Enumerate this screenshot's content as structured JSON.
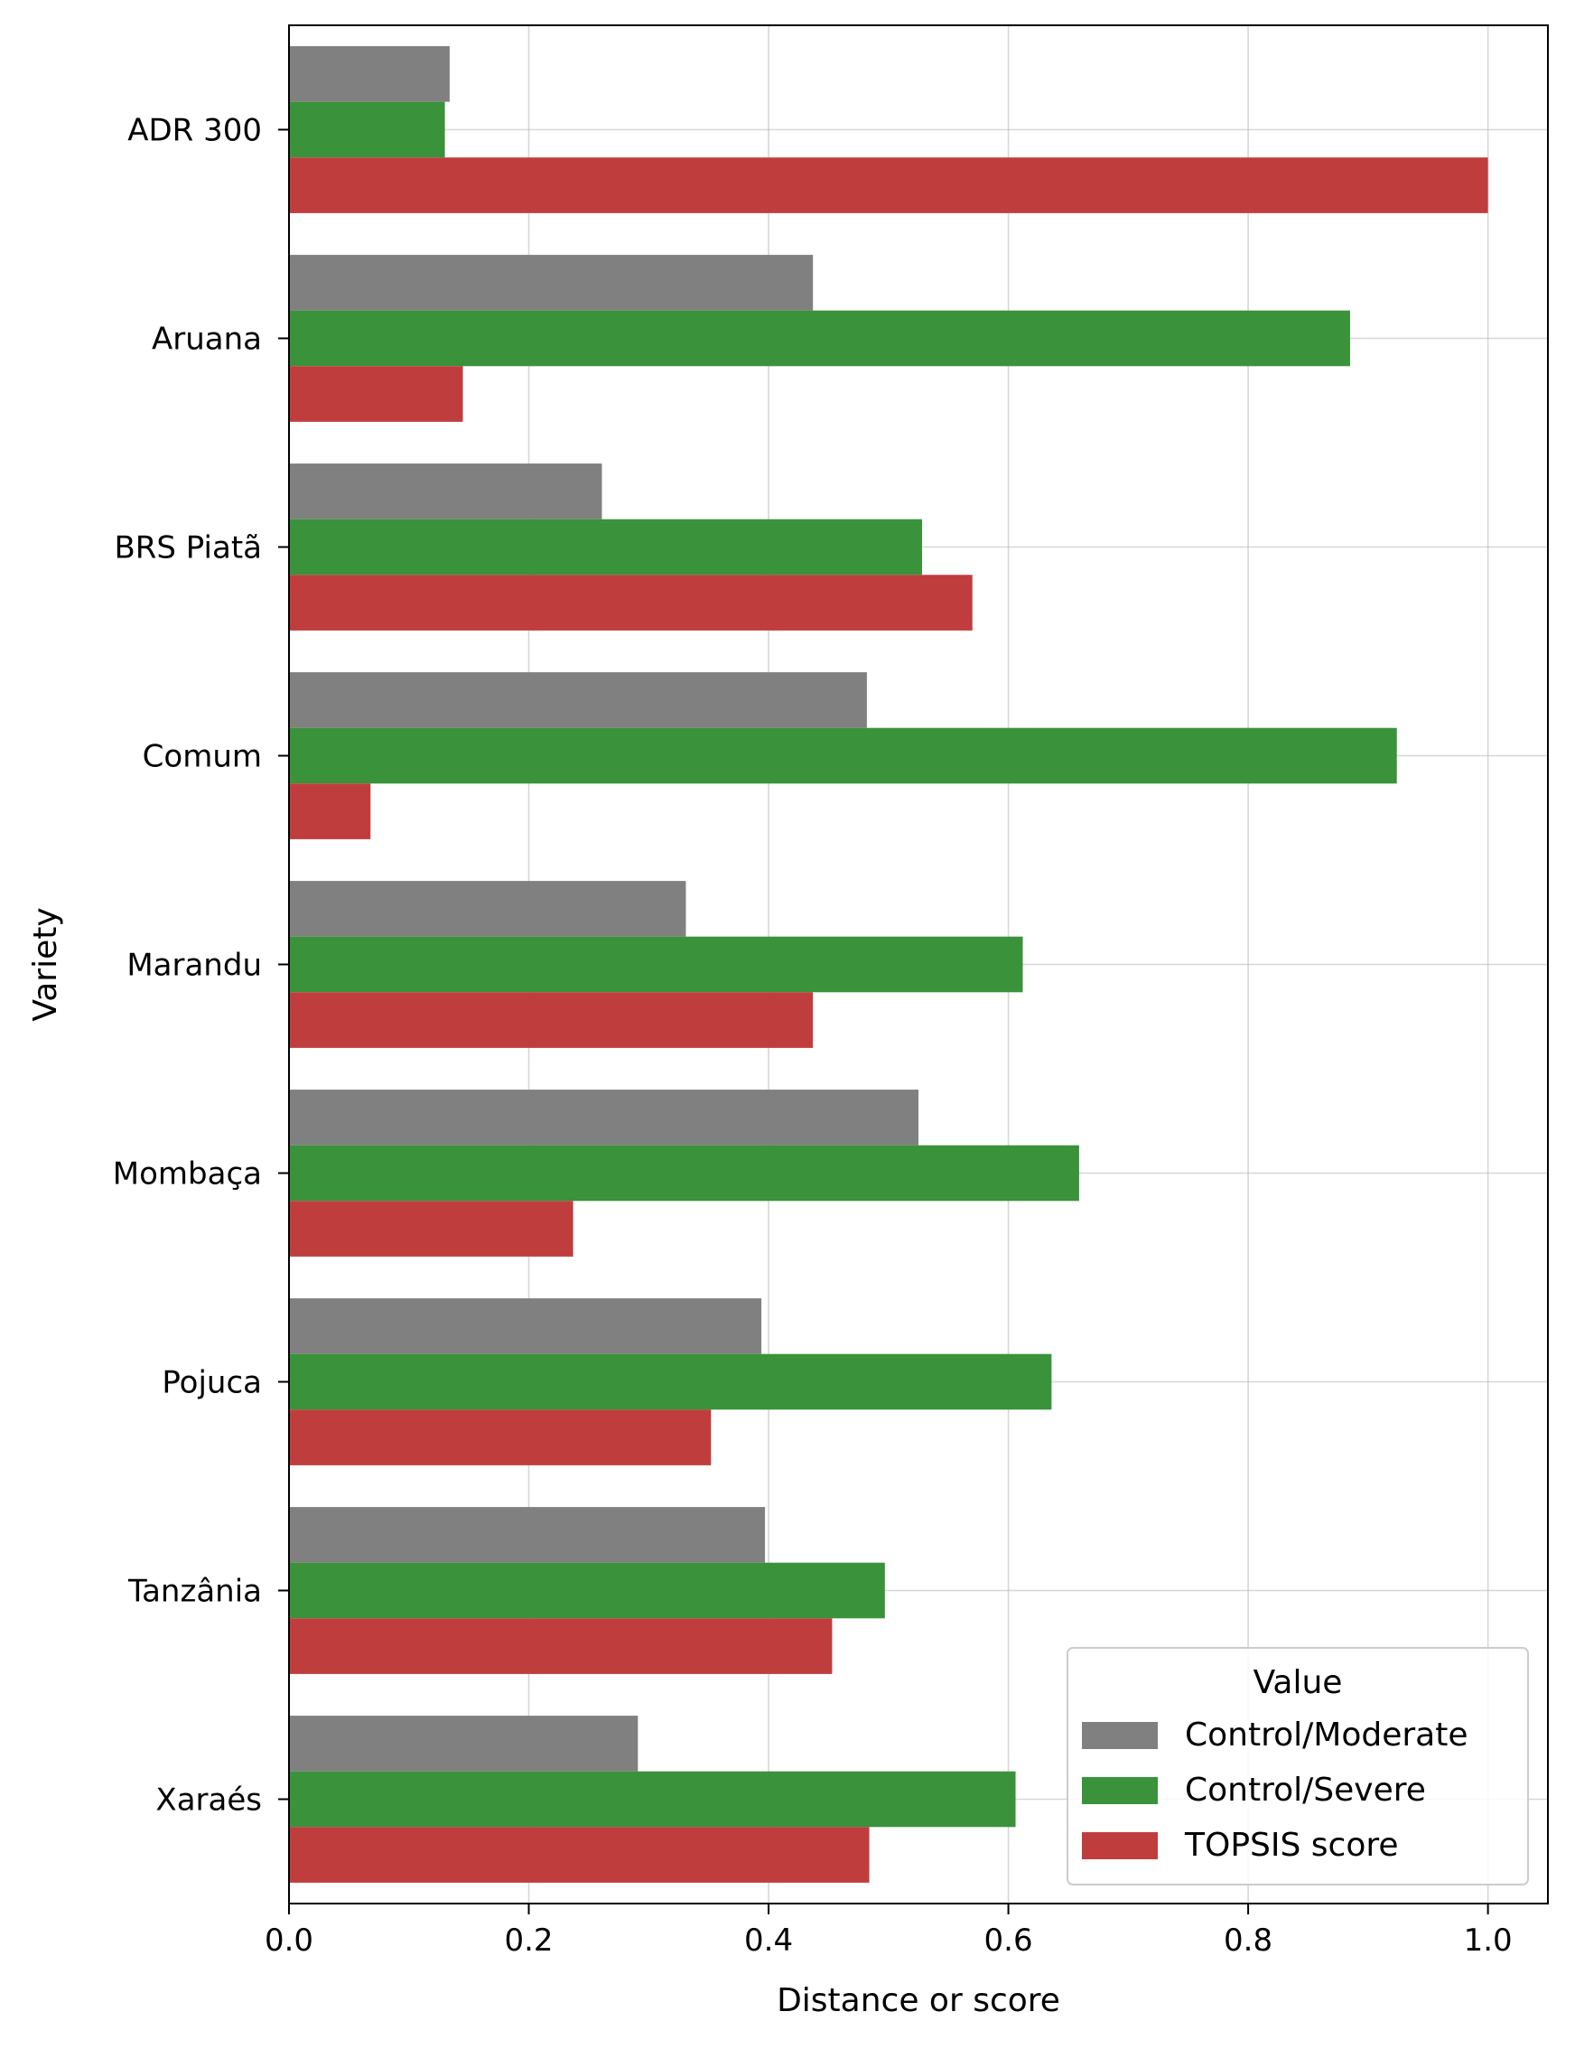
{
  "chart_data": {
    "type": "bar",
    "orientation": "horizontal",
    "xlabel": "Distance or score",
    "ylabel": "Variety",
    "xlim": [
      0,
      1.05
    ],
    "xticks": [
      {
        "value": 0.0,
        "label": "0.0"
      },
      {
        "value": 0.2,
        "label": "0.2"
      },
      {
        "value": 0.4,
        "label": "0.4"
      },
      {
        "value": 0.6,
        "label": "0.6"
      },
      {
        "value": 0.8,
        "label": "0.8"
      },
      {
        "value": 1.0,
        "label": "1.0"
      }
    ],
    "grid": true,
    "categories": [
      "ADR 300",
      "Aruana",
      "BRS Piatã",
      "Comum",
      "Marandu",
      "Mombaça",
      "Pojuca",
      "Tanzânia",
      "Xaraés"
    ],
    "series": [
      {
        "name": "Control/Moderate",
        "color": "#808080",
        "values": [
          0.134,
          0.437,
          0.261,
          0.482,
          0.331,
          0.525,
          0.394,
          0.397,
          0.291
        ]
      },
      {
        "name": "Control/Severe",
        "color": "#3a923a",
        "values": [
          0.13,
          0.885,
          0.528,
          0.924,
          0.612,
          0.659,
          0.636,
          0.497,
          0.606
        ]
      },
      {
        "name": "TOPSIS score",
        "color": "#c03d3e",
        "values": [
          1.0,
          0.145,
          0.57,
          0.068,
          0.437,
          0.237,
          0.352,
          0.453,
          0.484
        ]
      }
    ],
    "legend": {
      "title": "Value",
      "placement": "bottom-right"
    }
  }
}
